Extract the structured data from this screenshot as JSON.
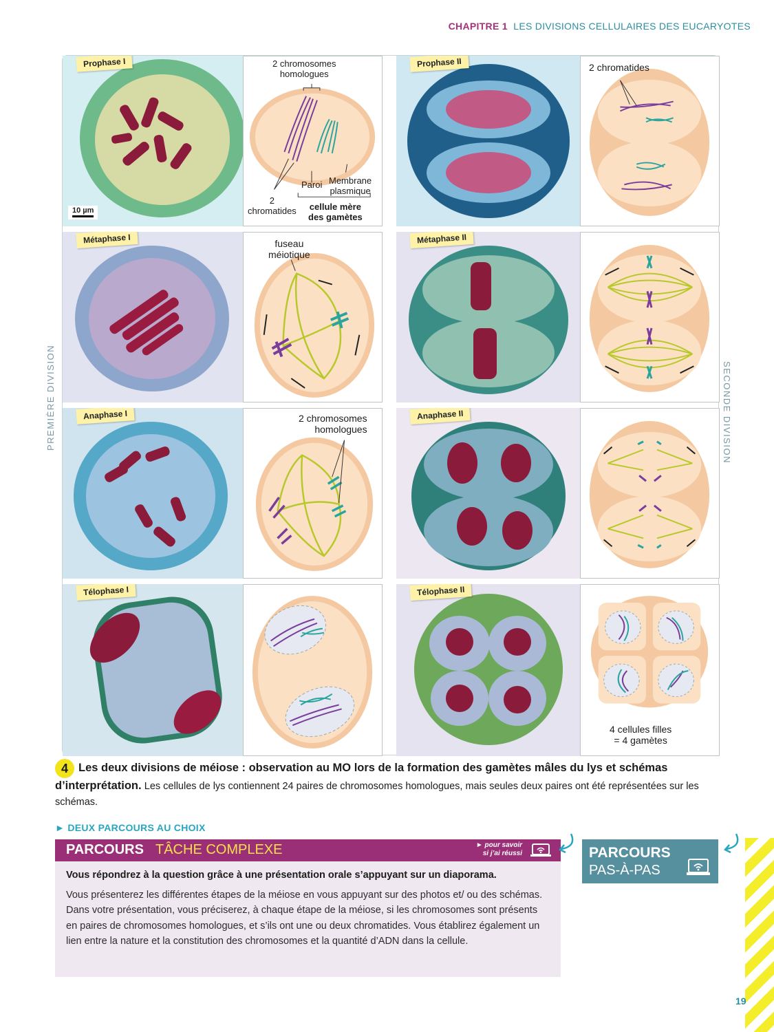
{
  "header": {
    "chapter": "CHAPITRE 1",
    "title": "LES DIVISIONS CELLULAIRES DES EUCARYOTES"
  },
  "side_labels": {
    "left": "PREMIÈRE DIVISION",
    "right": "SECONDE DIVISION"
  },
  "stages": {
    "prophase1": "Prophase I",
    "metaphase1": "Métaphase I",
    "anaphase1": "Anaphase I",
    "telophase1": "Télophase I",
    "prophase2": "Prophase II",
    "metaphase2": "Métaphase II",
    "anaphase2": "Anaphase II",
    "telophase2": "Télophase II"
  },
  "scale_bar": "10 µm",
  "annotations": {
    "homologous_pair": "2 chromosomes\nhomologues",
    "two_chromatids": "2\nchromatides",
    "wall": "Paroi",
    "membrane": "Membrane\nplasmique",
    "mother_cell": "cellule mère\ndes gamètes",
    "spindle": "fuseau\nméiotique",
    "two_homologous": "2 chromosomes\nhomologues",
    "two_chromatids_p2": "2 chromatides",
    "daughter_cells": "4 cellules filles\n= 4 gamètes"
  },
  "caption": {
    "number": "4",
    "title": "Les deux divisions de méiose : observation au MO lors de la formation des gamètes mâles du lys et schémas d’interprétation.",
    "text": "Les cellules de lys contiennent 24 paires de chromosomes homologues, mais seules deux paires ont été représentées sur les schémas."
  },
  "choices_label": "► DEUX PARCOURS AU CHOIX",
  "task": {
    "title_a": "PARCOURS",
    "title_b": "TÂCHE COMPLEXE",
    "hint": "► pour savoir\nsi j’ai réussi",
    "lead": "Vous répondrez à la question grâce à une présentation orale s’appuyant sur un diaporama.",
    "body": "Vous présenterez les différentes étapes de la méiose en vous appuyant sur des photos et/ ou des schémas. Dans votre présentation, vous préciserez, à chaque étape de la méiose, si les chromosomes sont présents en paires de chromosomes homologues, et s’ils ont une ou deux chromatides. Vous établirez également un lien entre la nature et la constitution des chromosomes et la quantité d’ADN dans la cellule."
  },
  "pas_a_pas": {
    "line1": "PARCOURS",
    "line2": "PAS-À-PAS"
  },
  "page_number": "19"
}
